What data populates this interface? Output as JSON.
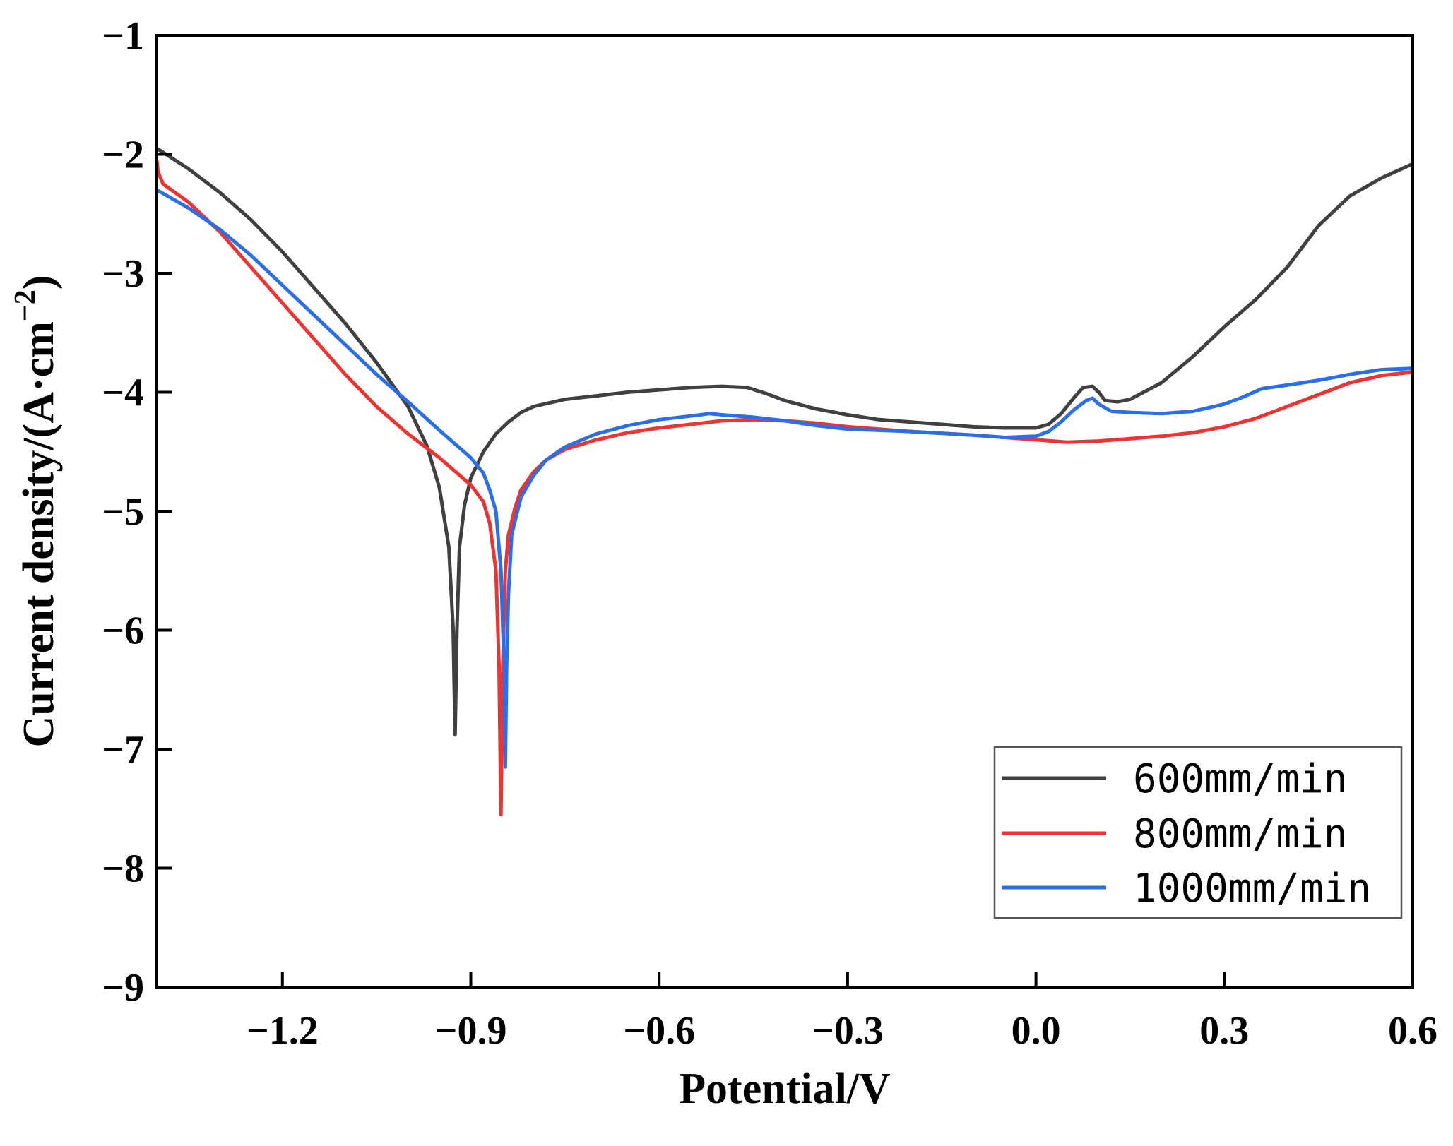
{
  "chart_data": {
    "type": "line",
    "title": "",
    "xlabel": "Potential/V",
    "ylabel_prefix": "Current density/(A·cm",
    "ylabel_sup": "−2",
    "ylabel_suffix": ")",
    "xlim": [
      -1.4,
      0.6
    ],
    "ylim": [
      -9,
      -1
    ],
    "x_ticks": [
      -1.2,
      -0.9,
      -0.6,
      -0.3,
      0.0,
      0.3,
      0.6
    ],
    "x_tick_labels": [
      "−1.2",
      "−0.9",
      "−0.6",
      "−0.3",
      "0.0",
      "0.3",
      "0.6"
    ],
    "y_ticks": [
      -1,
      -2,
      -3,
      -4,
      -5,
      -6,
      -7,
      -8,
      -9
    ],
    "y_tick_labels": [
      "−1",
      "−2",
      "−3",
      "−4",
      "−5",
      "−6",
      "−7",
      "−8",
      "−9"
    ],
    "grid": false,
    "legend_position": "bottom-right",
    "series": [
      {
        "name": "600mm/min",
        "color": "#404040",
        "points": [
          [
            -1.4,
            -1.95
          ],
          [
            -1.35,
            -2.12
          ],
          [
            -1.3,
            -2.32
          ],
          [
            -1.25,
            -2.55
          ],
          [
            -1.2,
            -2.82
          ],
          [
            -1.15,
            -3.12
          ],
          [
            -1.1,
            -3.42
          ],
          [
            -1.05,
            -3.75
          ],
          [
            -1.0,
            -4.12
          ],
          [
            -0.97,
            -4.45
          ],
          [
            -0.95,
            -4.8
          ],
          [
            -0.935,
            -5.3
          ],
          [
            -0.928,
            -6.0
          ],
          [
            -0.925,
            -6.88
          ],
          [
            -0.922,
            -6.0
          ],
          [
            -0.918,
            -5.3
          ],
          [
            -0.91,
            -4.95
          ],
          [
            -0.9,
            -4.72
          ],
          [
            -0.88,
            -4.5
          ],
          [
            -0.86,
            -4.35
          ],
          [
            -0.84,
            -4.25
          ],
          [
            -0.82,
            -4.17
          ],
          [
            -0.8,
            -4.12
          ],
          [
            -0.75,
            -4.06
          ],
          [
            -0.7,
            -4.03
          ],
          [
            -0.65,
            -4.0
          ],
          [
            -0.6,
            -3.98
          ],
          [
            -0.55,
            -3.96
          ],
          [
            -0.5,
            -3.95
          ],
          [
            -0.46,
            -3.96
          ],
          [
            -0.43,
            -4.01
          ],
          [
            -0.4,
            -4.07
          ],
          [
            -0.35,
            -4.14
          ],
          [
            -0.3,
            -4.19
          ],
          [
            -0.25,
            -4.23
          ],
          [
            -0.2,
            -4.25
          ],
          [
            -0.15,
            -4.27
          ],
          [
            -0.1,
            -4.29
          ],
          [
            -0.05,
            -4.3
          ],
          [
            0.0,
            -4.3
          ],
          [
            0.02,
            -4.27
          ],
          [
            0.04,
            -4.18
          ],
          [
            0.06,
            -4.05
          ],
          [
            0.075,
            -3.96
          ],
          [
            0.09,
            -3.95
          ],
          [
            0.1,
            -4.0
          ],
          [
            0.11,
            -4.07
          ],
          [
            0.13,
            -4.08
          ],
          [
            0.15,
            -4.06
          ],
          [
            0.2,
            -3.92
          ],
          [
            0.25,
            -3.7
          ],
          [
            0.3,
            -3.45
          ],
          [
            0.35,
            -3.22
          ],
          [
            0.4,
            -2.95
          ],
          [
            0.45,
            -2.6
          ],
          [
            0.5,
            -2.35
          ],
          [
            0.55,
            -2.2
          ],
          [
            0.6,
            -2.08
          ]
        ]
      },
      {
        "name": "800mm/min",
        "color": "#ee3333",
        "points": [
          [
            -1.4,
            -2.05
          ],
          [
            -1.398,
            -2.15
          ],
          [
            -1.39,
            -2.25
          ],
          [
            -1.35,
            -2.4
          ],
          [
            -1.3,
            -2.65
          ],
          [
            -1.25,
            -2.95
          ],
          [
            -1.2,
            -3.25
          ],
          [
            -1.15,
            -3.55
          ],
          [
            -1.1,
            -3.85
          ],
          [
            -1.05,
            -4.12
          ],
          [
            -1.0,
            -4.35
          ],
          [
            -0.95,
            -4.55
          ],
          [
            -0.9,
            -4.78
          ],
          [
            -0.88,
            -4.92
          ],
          [
            -0.87,
            -5.1
          ],
          [
            -0.86,
            -5.5
          ],
          [
            -0.855,
            -6.3
          ],
          [
            -0.852,
            -7.55
          ],
          [
            -0.849,
            -6.3
          ],
          [
            -0.845,
            -5.5
          ],
          [
            -0.84,
            -5.2
          ],
          [
            -0.83,
            -4.98
          ],
          [
            -0.82,
            -4.82
          ],
          [
            -0.8,
            -4.67
          ],
          [
            -0.78,
            -4.57
          ],
          [
            -0.75,
            -4.48
          ],
          [
            -0.7,
            -4.4
          ],
          [
            -0.65,
            -4.34
          ],
          [
            -0.6,
            -4.3
          ],
          [
            -0.55,
            -4.27
          ],
          [
            -0.5,
            -4.24
          ],
          [
            -0.45,
            -4.23
          ],
          [
            -0.4,
            -4.24
          ],
          [
            -0.35,
            -4.26
          ],
          [
            -0.3,
            -4.29
          ],
          [
            -0.2,
            -4.33
          ],
          [
            -0.1,
            -4.36
          ],
          [
            -0.05,
            -4.38
          ],
          [
            0.0,
            -4.4
          ],
          [
            0.05,
            -4.42
          ],
          [
            0.1,
            -4.41
          ],
          [
            0.15,
            -4.39
          ],
          [
            0.2,
            -4.37
          ],
          [
            0.25,
            -4.34
          ],
          [
            0.3,
            -4.29
          ],
          [
            0.35,
            -4.22
          ],
          [
            0.4,
            -4.12
          ],
          [
            0.45,
            -4.02
          ],
          [
            0.5,
            -3.92
          ],
          [
            0.55,
            -3.86
          ],
          [
            0.6,
            -3.83
          ]
        ]
      },
      {
        "name": "1000mm/min",
        "color": "#2b6fe8",
        "points": [
          [
            -1.4,
            -2.3
          ],
          [
            -1.35,
            -2.45
          ],
          [
            -1.3,
            -2.63
          ],
          [
            -1.25,
            -2.85
          ],
          [
            -1.2,
            -3.1
          ],
          [
            -1.15,
            -3.35
          ],
          [
            -1.1,
            -3.6
          ],
          [
            -1.05,
            -3.85
          ],
          [
            -1.0,
            -4.08
          ],
          [
            -0.95,
            -4.32
          ],
          [
            -0.9,
            -4.55
          ],
          [
            -0.88,
            -4.68
          ],
          [
            -0.87,
            -4.82
          ],
          [
            -0.86,
            -5.0
          ],
          [
            -0.852,
            -5.5
          ],
          [
            -0.847,
            -6.3
          ],
          [
            -0.845,
            -7.15
          ],
          [
            -0.843,
            -6.3
          ],
          [
            -0.84,
            -5.7
          ],
          [
            -0.835,
            -5.2
          ],
          [
            -0.82,
            -4.88
          ],
          [
            -0.8,
            -4.7
          ],
          [
            -0.78,
            -4.57
          ],
          [
            -0.75,
            -4.46
          ],
          [
            -0.7,
            -4.35
          ],
          [
            -0.65,
            -4.28
          ],
          [
            -0.6,
            -4.23
          ],
          [
            -0.55,
            -4.2
          ],
          [
            -0.52,
            -4.18
          ],
          [
            -0.5,
            -4.19
          ],
          [
            -0.45,
            -4.21
          ],
          [
            -0.4,
            -4.24
          ],
          [
            -0.35,
            -4.28
          ],
          [
            -0.3,
            -4.31
          ],
          [
            -0.2,
            -4.33
          ],
          [
            -0.1,
            -4.36
          ],
          [
            -0.05,
            -4.38
          ],
          [
            0.0,
            -4.37
          ],
          [
            0.02,
            -4.33
          ],
          [
            0.04,
            -4.25
          ],
          [
            0.06,
            -4.15
          ],
          [
            0.08,
            -4.07
          ],
          [
            0.09,
            -4.05
          ],
          [
            0.1,
            -4.1
          ],
          [
            0.12,
            -4.16
          ],
          [
            0.15,
            -4.17
          ],
          [
            0.2,
            -4.18
          ],
          [
            0.25,
            -4.16
          ],
          [
            0.3,
            -4.1
          ],
          [
            0.33,
            -4.04
          ],
          [
            0.36,
            -3.97
          ],
          [
            0.4,
            -3.94
          ],
          [
            0.45,
            -3.9
          ],
          [
            0.5,
            -3.85
          ],
          [
            0.55,
            -3.81
          ],
          [
            0.6,
            -3.8
          ]
        ]
      }
    ]
  }
}
